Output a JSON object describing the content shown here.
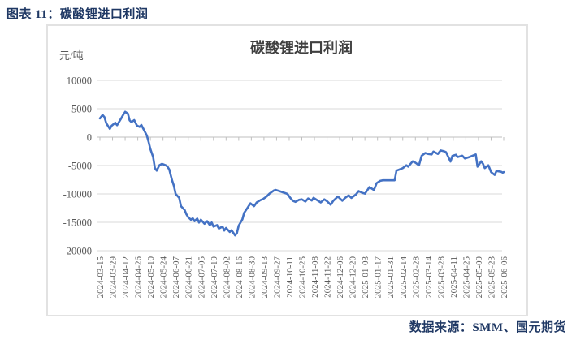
{
  "header": {
    "caption": "图表 11：碳酸锂进口利润"
  },
  "footer": {
    "source": "数据来源：SMM、国元期货"
  },
  "chart_data": {
    "type": "line",
    "title": "碳酸锂进口利润",
    "unit_label": "元/吨",
    "series_name": "碳酸锂进口利润",
    "legend": false,
    "grid": true,
    "line_color": "#4472C4",
    "grid_color": "#D9D9D9",
    "axis_color": "#BFBFBF",
    "text_color": "#595959",
    "title_color": "#404040",
    "ylim": [
      -20000,
      10000
    ],
    "y_ticks": [
      10000,
      5000,
      0,
      -5000,
      -10000,
      -15000,
      -20000
    ],
    "x_range": [
      "2024-03-15",
      "2025-06-06"
    ],
    "x_tick_labels": [
      "2024-03-15",
      "2024-03-29",
      "2024-04-12",
      "2024-04-26",
      "2024-05-10",
      "2024-05-24",
      "2024-06-07",
      "2024-06-21",
      "2024-07-05",
      "2024-07-19",
      "2024-08-02",
      "2024-08-16",
      "2024-08-30",
      "2024-09-13",
      "2024-09-27",
      "2024-10-11",
      "2024-10-25",
      "2024-11-08",
      "2024-11-22",
      "2024-12-06",
      "2024-12-20",
      "2025-01-03",
      "2025-01-17",
      "2025-01-31",
      "2025-02-14",
      "2025-02-28",
      "2025-03-14",
      "2025-03-28",
      "2025-04-11",
      "2025-04-25",
      "2025-05-09",
      "2025-05-23",
      "2025-06-06"
    ],
    "points": [
      [
        "2024-03-15",
        3300
      ],
      [
        "2024-03-18",
        3900
      ],
      [
        "2024-03-20",
        3550
      ],
      [
        "2024-03-22",
        2450
      ],
      [
        "2024-03-26",
        1450
      ],
      [
        "2024-03-28",
        2000
      ],
      [
        "2024-04-01",
        2550
      ],
      [
        "2024-04-03",
        2100
      ],
      [
        "2024-04-08",
        3400
      ],
      [
        "2024-04-10",
        3950
      ],
      [
        "2024-04-12",
        4450
      ],
      [
        "2024-04-15",
        4150
      ],
      [
        "2024-04-17",
        2950
      ],
      [
        "2024-04-19",
        2650
      ],
      [
        "2024-04-22",
        3000
      ],
      [
        "2024-04-25",
        2050
      ],
      [
        "2024-04-28",
        1800
      ],
      [
        "2024-04-30",
        2150
      ],
      [
        "2024-05-06",
        300
      ],
      [
        "2024-05-08",
        -800
      ],
      [
        "2024-05-10",
        -2100
      ],
      [
        "2024-05-13",
        -3500
      ],
      [
        "2024-05-15",
        -5450
      ],
      [
        "2024-05-17",
        -5900
      ],
      [
        "2024-05-20",
        -4950
      ],
      [
        "2024-05-23",
        -4700
      ],
      [
        "2024-05-27",
        -4950
      ],
      [
        "2024-05-29",
        -5200
      ],
      [
        "2024-05-31",
        -5700
      ],
      [
        "2024-06-03",
        -7600
      ],
      [
        "2024-06-05",
        -8550
      ],
      [
        "2024-06-07",
        -10000
      ],
      [
        "2024-06-11",
        -10700
      ],
      [
        "2024-06-13",
        -12150
      ],
      [
        "2024-06-17",
        -12850
      ],
      [
        "2024-06-19",
        -13600
      ],
      [
        "2024-06-21",
        -14100
      ],
      [
        "2024-06-24",
        -14550
      ],
      [
        "2024-06-26",
        -14300
      ],
      [
        "2024-06-28",
        -14800
      ],
      [
        "2024-07-01",
        -14350
      ],
      [
        "2024-07-03",
        -15050
      ],
      [
        "2024-07-05",
        -14550
      ],
      [
        "2024-07-09",
        -15250
      ],
      [
        "2024-07-12",
        -14800
      ],
      [
        "2024-07-15",
        -15500
      ],
      [
        "2024-07-17",
        -15050
      ],
      [
        "2024-07-19",
        -15750
      ],
      [
        "2024-07-23",
        -15500
      ],
      [
        "2024-07-25",
        -16100
      ],
      [
        "2024-07-29",
        -15750
      ],
      [
        "2024-07-31",
        -16450
      ],
      [
        "2024-08-02",
        -16000
      ],
      [
        "2024-08-06",
        -16700
      ],
      [
        "2024-08-08",
        -16400
      ],
      [
        "2024-08-12",
        -17300
      ],
      [
        "2024-08-14",
        -16900
      ],
      [
        "2024-08-16",
        -15600
      ],
      [
        "2024-08-20",
        -14500
      ],
      [
        "2024-08-22",
        -13350
      ],
      [
        "2024-08-26",
        -12400
      ],
      [
        "2024-08-29",
        -11650
      ],
      [
        "2024-09-02",
        -12150
      ],
      [
        "2024-09-05",
        -11500
      ],
      [
        "2024-09-09",
        -11100
      ],
      [
        "2024-09-12",
        -10900
      ],
      [
        "2024-09-16",
        -10450
      ],
      [
        "2024-09-19",
        -9950
      ],
      [
        "2024-09-24",
        -9400
      ],
      [
        "2024-09-26",
        -9300
      ],
      [
        "2024-09-30",
        -9500
      ],
      [
        "2024-10-09",
        -10000
      ],
      [
        "2024-10-12",
        -10650
      ],
      [
        "2024-10-15",
        -11200
      ],
      [
        "2024-10-18",
        -11400
      ],
      [
        "2024-10-22",
        -11050
      ],
      [
        "2024-10-25",
        -10950
      ],
      [
        "2024-10-29",
        -11350
      ],
      [
        "2024-11-01",
        -10800
      ],
      [
        "2024-11-05",
        -11150
      ],
      [
        "2024-11-07",
        -10700
      ],
      [
        "2024-11-12",
        -11200
      ],
      [
        "2024-11-15",
        -11500
      ],
      [
        "2024-11-19",
        -10950
      ],
      [
        "2024-11-22",
        -11300
      ],
      [
        "2024-11-26",
        -11900
      ],
      [
        "2024-11-29",
        -11200
      ],
      [
        "2024-12-04",
        -10450
      ],
      [
        "2024-12-09",
        -11200
      ],
      [
        "2024-12-12",
        -10700
      ],
      [
        "2024-12-16",
        -10250
      ],
      [
        "2024-12-19",
        -10700
      ],
      [
        "2024-12-24",
        -10100
      ],
      [
        "2024-12-27",
        -9500
      ],
      [
        "2024-12-31",
        -9800
      ],
      [
        "2025-01-03",
        -9950
      ],
      [
        "2025-01-08",
        -8800
      ],
      [
        "2025-01-13",
        -9300
      ],
      [
        "2025-01-16",
        -8100
      ],
      [
        "2025-01-20",
        -7700
      ],
      [
        "2025-01-23",
        -7600
      ],
      [
        "2025-02-05",
        -7600
      ],
      [
        "2025-02-07",
        -5900
      ],
      [
        "2025-02-11",
        -5650
      ],
      [
        "2025-02-14",
        -5450
      ],
      [
        "2025-02-18",
        -4950
      ],
      [
        "2025-02-20",
        -5200
      ],
      [
        "2025-02-25",
        -4250
      ],
      [
        "2025-02-28",
        -4500
      ],
      [
        "2025-03-04",
        -4950
      ],
      [
        "2025-03-07",
        -3270
      ],
      [
        "2025-03-11",
        -2800
      ],
      [
        "2025-03-14",
        -2950
      ],
      [
        "2025-03-18",
        -3050
      ],
      [
        "2025-03-20",
        -2550
      ],
      [
        "2025-03-25",
        -2950
      ],
      [
        "2025-03-28",
        -2350
      ],
      [
        "2025-04-01",
        -2500
      ],
      [
        "2025-04-03",
        -2650
      ],
      [
        "2025-04-08",
        -4300
      ],
      [
        "2025-04-10",
        -3300
      ],
      [
        "2025-04-14",
        -3100
      ],
      [
        "2025-04-16",
        -3500
      ],
      [
        "2025-04-21",
        -3270
      ],
      [
        "2025-04-24",
        -3750
      ],
      [
        "2025-04-29",
        -3500
      ],
      [
        "2025-05-06",
        -3050
      ],
      [
        "2025-05-08",
        -5200
      ],
      [
        "2025-05-12",
        -4250
      ],
      [
        "2025-05-14",
        -4700
      ],
      [
        "2025-05-16",
        -5450
      ],
      [
        "2025-05-20",
        -4950
      ],
      [
        "2025-05-23",
        -6150
      ],
      [
        "2025-05-27",
        -6650
      ],
      [
        "2025-05-29",
        -5950
      ],
      [
        "2025-06-03",
        -6100
      ],
      [
        "2025-06-05",
        -6250
      ],
      [
        "2025-06-06",
        -6150
      ]
    ]
  }
}
